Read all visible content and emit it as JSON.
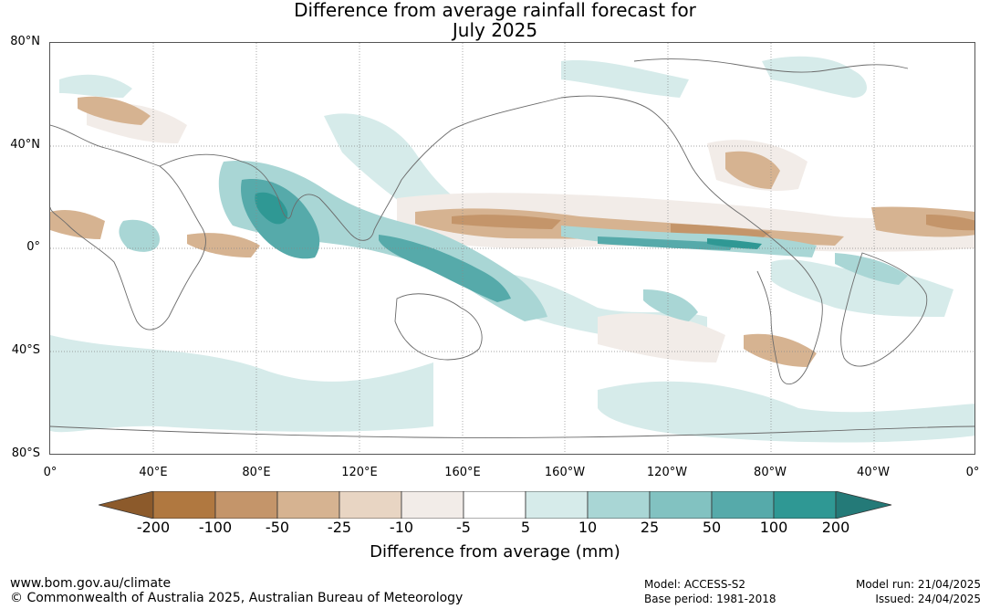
{
  "title": {
    "line1": "Difference from average rainfall forecast for",
    "line2": "July 2025"
  },
  "map": {
    "lat_labels": [
      "80°N",
      "40°N",
      "0°",
      "40°S",
      "80°S"
    ],
    "lon_labels": [
      "0°",
      "40°E",
      "80°E",
      "120°E",
      "160°E",
      "160°W",
      "120°W",
      "80°W",
      "40°W",
      "0°"
    ],
    "colors": {
      "dry_200": "#8c5a2b",
      "dry_100": "#b07840",
      "dry_50": "#c4956a",
      "dry_25": "#d6b391",
      "dry_10": "#e8d5c3",
      "dry_5": "#f2ece8",
      "neutral": "#ffffff",
      "wet_5": "#d6ebea",
      "wet_10": "#a9d6d5",
      "wet_25": "#82c2c1",
      "wet_50": "#56aaaa",
      "wet_100": "#2f9894",
      "wet_200": "#247a78"
    }
  },
  "colorbar": {
    "ticks": [
      "-200",
      "-100",
      "-50",
      "-25",
      "-10",
      "-5",
      "5",
      "10",
      "25",
      "50",
      "100",
      "200"
    ],
    "label": "Difference from average (mm)"
  },
  "footer": {
    "website": "www.bom.gov.au/climate",
    "copyright": "© Commonwealth of Australia 2025, Australian Bureau of Meteorology",
    "model": "Model: ACCESS-S2",
    "base_period": "Base period: 1981-2018",
    "model_run": "Model run: 21/04/2025",
    "issued": "Issued: 24/04/2025"
  }
}
